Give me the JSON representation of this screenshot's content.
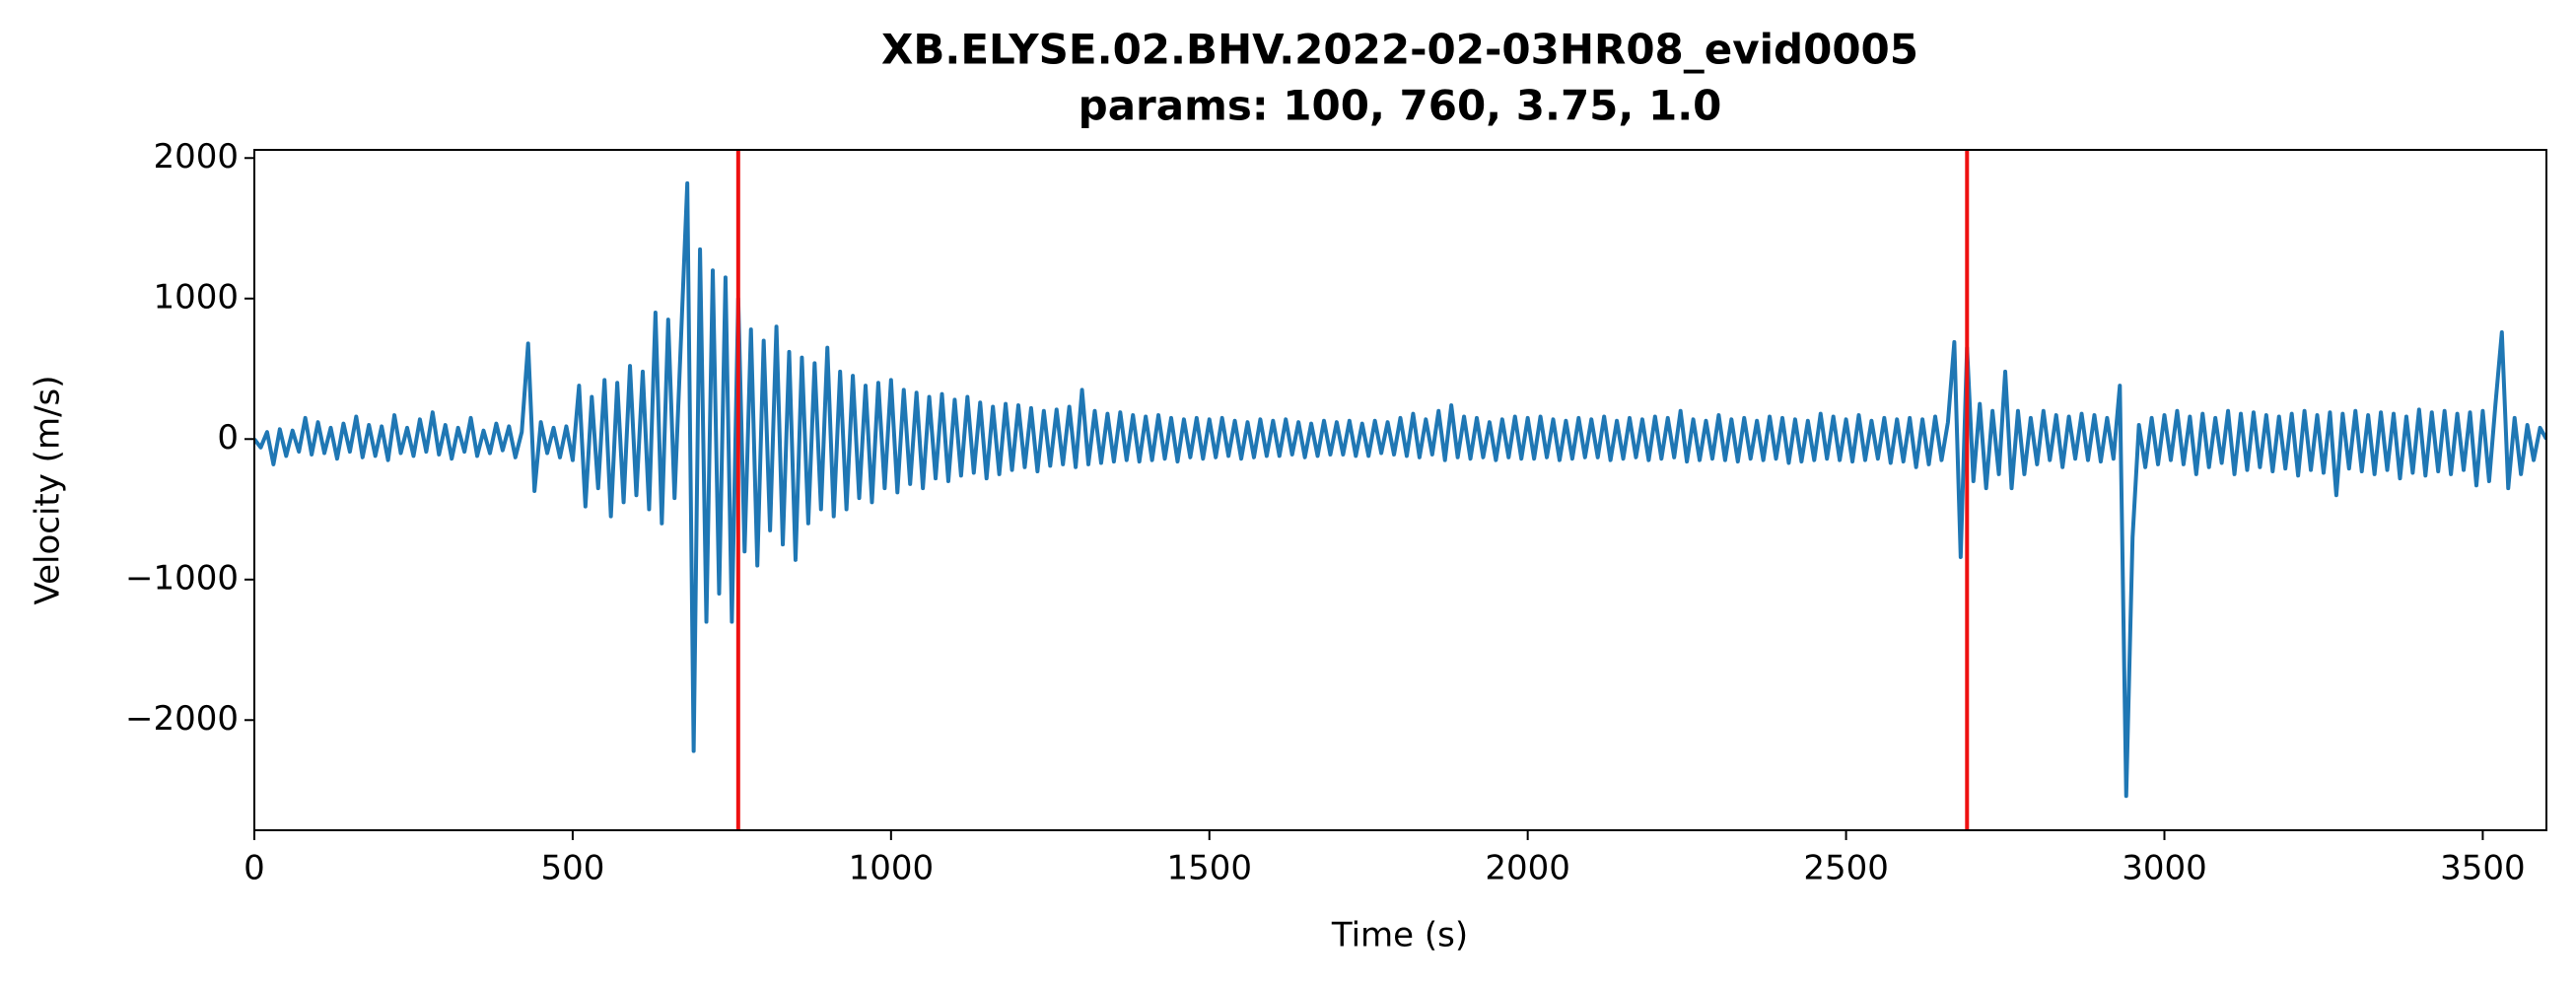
{
  "chart_data": {
    "type": "line",
    "title": "XB.ELYSE.02.BHV.2022-02-03HR08_evid0005",
    "subtitle": "params: 100, 760, 3.75, 1.0",
    "x_label": "Time (s)",
    "y_label": "Velocity (m/s)",
    "color": "#1f77b4",
    "markers": [
      760,
      2690
    ],
    "marker_color": "#ee1111",
    "xlim": [
      0,
      3600
    ],
    "xticks": [
      0,
      500,
      1000,
      1500,
      2000,
      2500,
      3000,
      3500
    ],
    "ylim": [
      -2784,
      2058
    ],
    "yticks": [
      {
        "value": -2000,
        "label": "−2000"
      },
      {
        "value": -1000,
        "label": "−1000"
      },
      0,
      1000,
      2000
    ],
    "x": [
      0,
      10,
      20,
      30,
      40,
      50,
      60,
      70,
      80,
      90,
      100,
      110,
      120,
      130,
      140,
      150,
      160,
      170,
      180,
      190,
      200,
      210,
      220,
      230,
      240,
      250,
      260,
      270,
      280,
      290,
      300,
      310,
      320,
      330,
      340,
      350,
      360,
      370,
      380,
      390,
      400,
      410,
      420,
      430,
      440,
      450,
      460,
      470,
      480,
      490,
      500,
      510,
      520,
      530,
      540,
      550,
      560,
      570,
      580,
      590,
      600,
      610,
      620,
      630,
      640,
      650,
      660,
      670,
      680,
      690,
      700,
      710,
      720,
      730,
      740,
      750,
      760,
      770,
      780,
      790,
      800,
      810,
      820,
      830,
      840,
      850,
      860,
      870,
      880,
      890,
      900,
      910,
      920,
      930,
      940,
      950,
      960,
      970,
      980,
      990,
      1000,
      1010,
      1020,
      1030,
      1040,
      1050,
      1060,
      1070,
      1080,
      1090,
      1100,
      1110,
      1120,
      1130,
      1140,
      1150,
      1160,
      1170,
      1180,
      1190,
      1200,
      1210,
      1220,
      1230,
      1240,
      1250,
      1260,
      1270,
      1280,
      1290,
      1300,
      1310,
      1320,
      1330,
      1340,
      1350,
      1360,
      1370,
      1380,
      1390,
      1400,
      1410,
      1420,
      1430,
      1440,
      1450,
      1460,
      1470,
      1480,
      1490,
      1500,
      1510,
      1520,
      1530,
      1540,
      1550,
      1560,
      1570,
      1580,
      1590,
      1600,
      1610,
      1620,
      1630,
      1640,
      1650,
      1660,
      1670,
      1680,
      1690,
      1700,
      1710,
      1720,
      1730,
      1740,
      1750,
      1760,
      1770,
      1780,
      1790,
      1800,
      1810,
      1820,
      1830,
      1840,
      1850,
      1860,
      1870,
      1880,
      1890,
      1900,
      1910,
      1920,
      1930,
      1940,
      1950,
      1960,
      1970,
      1980,
      1990,
      2000,
      2010,
      2020,
      2030,
      2040,
      2050,
      2060,
      2070,
      2080,
      2090,
      2100,
      2110,
      2120,
      2130,
      2140,
      2150,
      2160,
      2170,
      2180,
      2190,
      2200,
      2210,
      2220,
      2230,
      2240,
      2250,
      2260,
      2270,
      2280,
      2290,
      2300,
      2310,
      2320,
      2330,
      2340,
      2350,
      2360,
      2370,
      2380,
      2390,
      2400,
      2410,
      2420,
      2430,
      2440,
      2450,
      2460,
      2470,
      2480,
      2490,
      2500,
      2510,
      2520,
      2530,
      2540,
      2550,
      2560,
      2570,
      2580,
      2590,
      2600,
      2610,
      2620,
      2630,
      2640,
      2650,
      2660,
      2670,
      2680,
      2690,
      2700,
      2710,
      2720,
      2730,
      2740,
      2750,
      2760,
      2770,
      2780,
      2790,
      2800,
      2810,
      2820,
      2830,
      2840,
      2850,
      2860,
      2870,
      2880,
      2890,
      2900,
      2910,
      2920,
      2930,
      2940,
      2950,
      2960,
      2970,
      2980,
      2990,
      3000,
      3010,
      3020,
      3030,
      3040,
      3050,
      3060,
      3070,
      3080,
      3090,
      3100,
      3110,
      3120,
      3130,
      3140,
      3150,
      3160,
      3170,
      3180,
      3190,
      3200,
      3210,
      3220,
      3230,
      3240,
      3250,
      3260,
      3270,
      3280,
      3290,
      3300,
      3310,
      3320,
      3330,
      3340,
      3350,
      3360,
      3370,
      3380,
      3390,
      3400,
      3410,
      3420,
      3430,
      3440,
      3450,
      3460,
      3470,
      3480,
      3490,
      3500,
      3510,
      3520,
      3530,
      3540,
      3550,
      3560,
      3570,
      3580,
      3590,
      3600
    ],
    "values": [
      0,
      -60,
      50,
      -180,
      70,
      -120,
      60,
      -90,
      150,
      -110,
      120,
      -100,
      80,
      -140,
      110,
      -90,
      160,
      -130,
      100,
      -120,
      90,
      -150,
      170,
      -100,
      80,
      -120,
      140,
      -90,
      190,
      -110,
      100,
      -140,
      80,
      -90,
      150,
      -120,
      60,
      -100,
      110,
      -80,
      90,
      -130,
      50,
      680,
      -370,
      120,
      -100,
      80,
      -130,
      90,
      -150,
      380,
      -480,
      300,
      -350,
      420,
      -550,
      400,
      -450,
      520,
      -400,
      480,
      -500,
      900,
      -600,
      850,
      -420,
      700,
      1820,
      -2220,
      1350,
      -1300,
      1200,
      -1100,
      1150,
      -1300,
      1000,
      -800,
      780,
      -900,
      700,
      -650,
      800,
      -750,
      620,
      -860,
      580,
      -600,
      540,
      -500,
      650,
      -550,
      480,
      -500,
      450,
      -420,
      380,
      -450,
      400,
      -350,
      420,
      -380,
      350,
      -320,
      330,
      -350,
      300,
      -280,
      320,
      -300,
      280,
      -260,
      300,
      -240,
      260,
      -280,
      230,
      -250,
      250,
      -220,
      240,
      -200,
      220,
      -230,
      200,
      -190,
      210,
      -180,
      230,
      -200,
      350,
      -180,
      200,
      -170,
      180,
      -160,
      190,
      -150,
      170,
      -160,
      160,
      -150,
      170,
      -140,
      150,
      -160,
      140,
      -130,
      150,
      -140,
      140,
      -130,
      150,
      -120,
      130,
      -140,
      120,
      -130,
      140,
      -120,
      130,
      -120,
      140,
      -110,
      120,
      -130,
      110,
      -120,
      130,
      -110,
      120,
      -110,
      130,
      -120,
      110,
      -120,
      130,
      -100,
      120,
      -110,
      150,
      -120,
      180,
      -130,
      140,
      -110,
      200,
      -150,
      240,
      -130,
      160,
      -140,
      150,
      -130,
      120,
      -150,
      140,
      -130,
      160,
      -140,
      150,
      -140,
      160,
      -130,
      140,
      -150,
      130,
      -140,
      150,
      -130,
      140,
      -130,
      160,
      -150,
      130,
      -140,
      150,
      -130,
      140,
      -150,
      160,
      -140,
      150,
      -130,
      200,
      -160,
      140,
      -150,
      130,
      -140,
      170,
      -150,
      140,
      -160,
      150,
      -140,
      130,
      -150,
      160,
      -140,
      150,
      -170,
      140,
      -160,
      130,
      -150,
      180,
      -140,
      160,
      -150,
      140,
      -160,
      170,
      -150,
      130,
      -140,
      150,
      -170,
      140,
      -160,
      150,
      -200,
      140,
      -180,
      160,
      -150,
      120,
      690,
      -840,
      650,
      -300,
      250,
      -350,
      200,
      -250,
      480,
      -350,
      200,
      -250,
      150,
      -180,
      200,
      -150,
      170,
      -200,
      160,
      -140,
      180,
      -150,
      170,
      -160,
      150,
      -140,
      380,
      -2540,
      -700,
      100,
      -200,
      150,
      -180,
      170,
      -150,
      200,
      -180,
      160,
      -250,
      180,
      -200,
      150,
      -170,
      200,
      -250,
      180,
      -220,
      190,
      -200,
      170,
      -230,
      160,
      -210,
      180,
      -260,
      200,
      -220,
      170,
      -240,
      190,
      -400,
      180,
      -210,
      200,
      -230,
      170,
      -250,
      190,
      -220,
      180,
      -280,
      160,
      -240,
      210,
      -260,
      190,
      -230,
      200,
      -250,
      180,
      -220,
      190,
      -330,
      200,
      -300,
      250,
      760,
      -350,
      150,
      -250,
      100,
      -150,
      80,
      0
    ]
  }
}
